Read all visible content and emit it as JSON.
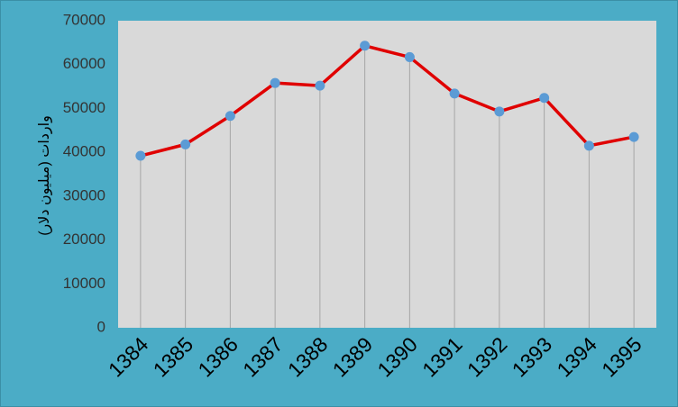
{
  "chart_data": {
    "type": "line",
    "title": "",
    "xlabel": "",
    "ylabel": "واردات (میلیون دلار)",
    "categories": [
      "1384",
      "1385",
      "1386",
      "1387",
      "1388",
      "1389",
      "1390",
      "1391",
      "1392",
      "1393",
      "1394",
      "1395"
    ],
    "series": [
      {
        "values": [
          39200,
          41800,
          48300,
          55800,
          55200,
          64300,
          61700,
          53400,
          49300,
          52400,
          41500,
          43500
        ]
      }
    ],
    "ylim": [
      0,
      70000
    ],
    "yticks": [
      0,
      10000,
      20000,
      30000,
      40000,
      50000,
      60000,
      70000
    ],
    "grid": "vertical drop lines",
    "legend": "none"
  },
  "colors": {
    "frame": "#4bacc6",
    "plot_bg": "#d9d9d9",
    "line": "#e00000",
    "marker": "#5b9bd5",
    "drop_line": "#a6a6a6"
  }
}
